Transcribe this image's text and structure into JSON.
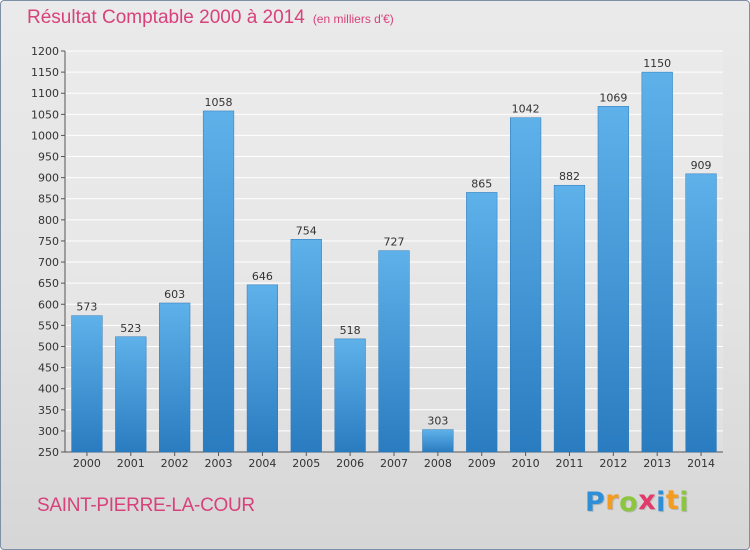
{
  "header": {
    "title": "Résultat Comptable 2000 à 2014",
    "subtitle": "(en milliers d'€)"
  },
  "footer": {
    "town": "SAINT-PIERRE-LA-COUR",
    "logo_letters": [
      "P",
      "r",
      "o",
      "x",
      "i",
      "t",
      "i"
    ],
    "logo_colors": [
      "#2f8fd6",
      "#f39c1f",
      "#8cc63f",
      "#e23a6b",
      "#2f8fd6",
      "#f39c1f",
      "#8cc63f"
    ]
  },
  "colors": {
    "title": "#d8417a",
    "bar": "#3a8fd1",
    "bar_light": "#5fb1ea",
    "grid": "#ffffff"
  },
  "chart_data": {
    "type": "bar",
    "title": "Résultat Comptable 2000 à 2014",
    "subtitle": "(en milliers d'€)",
    "categories": [
      "2000",
      "2001",
      "2002",
      "2003",
      "2004",
      "2005",
      "2006",
      "2007",
      "2008",
      "2009",
      "2010",
      "2011",
      "2012",
      "2013",
      "2014"
    ],
    "values": [
      573,
      523,
      603,
      1058,
      646,
      754,
      518,
      727,
      303,
      865,
      1042,
      882,
      1069,
      1150,
      909
    ],
    "ylim": [
      250,
      1200
    ],
    "yticks": [
      250,
      300,
      350,
      400,
      450,
      500,
      550,
      600,
      650,
      700,
      750,
      800,
      850,
      900,
      950,
      1000,
      1050,
      1100,
      1150,
      1200
    ],
    "grid": true,
    "xlabel": "",
    "ylabel": ""
  }
}
